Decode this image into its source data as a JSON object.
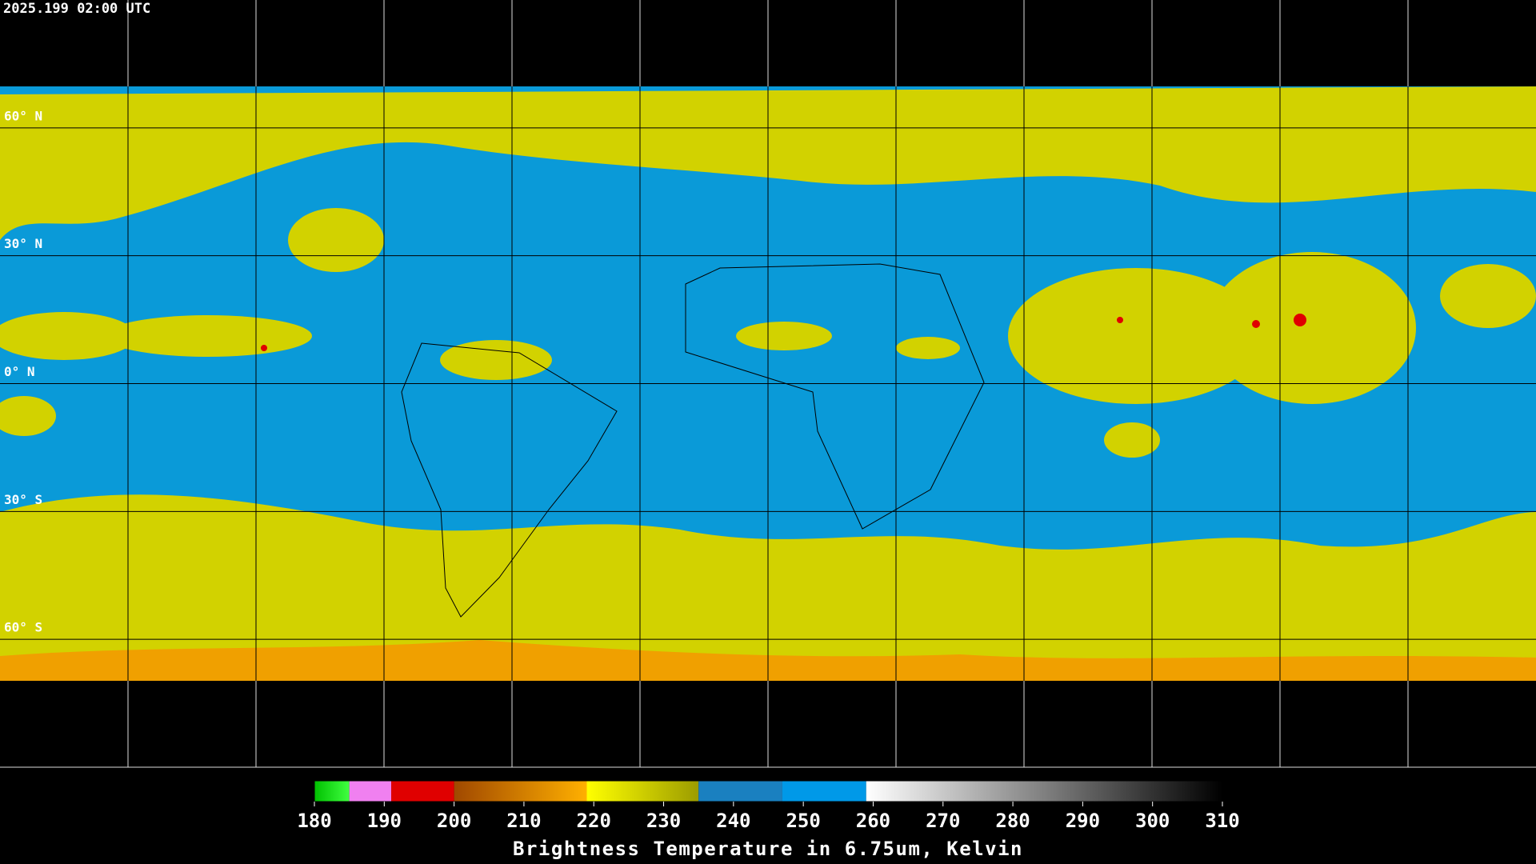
{
  "header": {
    "title": "2025.199 02:00 UTC"
  },
  "map": {
    "lonlim": [
      -180,
      180
    ],
    "latlim": [
      90,
      -90
    ],
    "lon_grid": [
      -150,
      -120,
      -90,
      -60,
      -30,
      0,
      30,
      60,
      90,
      120,
      150
    ],
    "lat_grid": [
      {
        "value": 60,
        "label": "60° N"
      },
      {
        "value": 30,
        "label": "30° N"
      },
      {
        "value": 0,
        "label": "0° N"
      },
      {
        "value": -30,
        "label": "30° S"
      },
      {
        "value": -60,
        "label": "60° S"
      }
    ]
  },
  "colorbar": {
    "label": "Brightness Temperature in 6.75um, Kelvin",
    "lim": [
      180,
      310
    ],
    "ticks": [
      180,
      190,
      200,
      210,
      220,
      230,
      240,
      250,
      260,
      270,
      280,
      290,
      300,
      310
    ],
    "segments": [
      {
        "from": 180,
        "to": 185,
        "colors": [
          "#00c000",
          "#40ff40"
        ]
      },
      {
        "from": 185,
        "to": 191,
        "colors": [
          "#f080f0",
          "#f080f0"
        ]
      },
      {
        "from": 191,
        "to": 200,
        "colors": [
          "#e00000",
          "#e00000"
        ]
      },
      {
        "from": 200,
        "to": 219,
        "colors": [
          "#a04800",
          "#ffb000"
        ]
      },
      {
        "from": 219,
        "to": 235,
        "colors": [
          "#ffff00",
          "#9c9c00"
        ]
      },
      {
        "from": 235,
        "to": 247,
        "colors": [
          "#1a80c0",
          "#1a80c0"
        ]
      },
      {
        "from": 247,
        "to": 259,
        "colors": [
          "#0099e8",
          "#0099e8"
        ]
      },
      {
        "from": 259,
        "to": 310,
        "colors": [
          "#ffffff",
          "#000000"
        ]
      }
    ]
  }
}
